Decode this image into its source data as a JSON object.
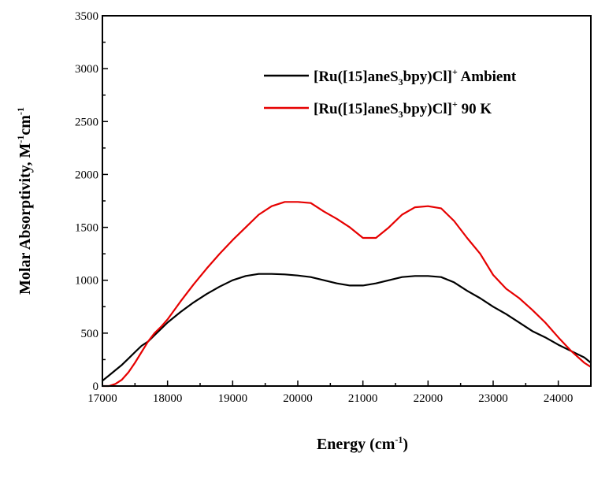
{
  "chart_data": {
    "type": "line",
    "title": "",
    "xlabel": {
      "main": "Energy (cm",
      "sup": "-1",
      "tail": ")"
    },
    "ylabel": {
      "main": "Molar Absorptivity, M",
      "sup1": "-1",
      "mid": "cm",
      "sup2": "-1"
    },
    "xlim": [
      17000,
      24500
    ],
    "ylim": [
      0,
      3500
    ],
    "xticks": [
      17000,
      18000,
      19000,
      20000,
      21000,
      22000,
      23000,
      24000
    ],
    "yticks": [
      0,
      500,
      1000,
      1500,
      2000,
      2500,
      3000,
      3500
    ],
    "grid": false,
    "legend_position": "top-right",
    "series": [
      {
        "name": "[Ru([15]aneS3bpy)Cl]+ Ambient",
        "legend": {
          "prefix": "[Ru([15]aneS",
          "sub": "3",
          "mid": "bpy)Cl]",
          "sup": "+",
          "suffix": " Ambient"
        },
        "color": "#000000",
        "x": [
          17000,
          17100,
          17200,
          17300,
          17400,
          17500,
          17600,
          17700,
          17800,
          17900,
          18000,
          18200,
          18400,
          18600,
          18800,
          19000,
          19200,
          19400,
          19600,
          19800,
          20000,
          20200,
          20400,
          20600,
          20800,
          21000,
          21200,
          21400,
          21600,
          21800,
          22000,
          22200,
          22400,
          22600,
          22800,
          23000,
          23200,
          23400,
          23600,
          23800,
          24000,
          24200,
          24400,
          24500
        ],
        "y": [
          50,
          100,
          150,
          200,
          260,
          320,
          380,
          420,
          480,
          540,
          600,
          700,
          790,
          870,
          940,
          1000,
          1040,
          1060,
          1060,
          1055,
          1045,
          1030,
          1000,
          970,
          950,
          950,
          970,
          1000,
          1030,
          1040,
          1040,
          1030,
          980,
          900,
          830,
          750,
          680,
          600,
          520,
          460,
          390,
          330,
          270,
          220
        ]
      },
      {
        "name": "[Ru([15]aneS3bpy)Cl]+ 90 K",
        "legend": {
          "prefix": "[Ru([15]aneS",
          "sub": "3",
          "mid": "bpy)Cl]",
          "sup": "+",
          "suffix": " 90 K"
        },
        "color": "#e60000",
        "x": [
          17000,
          17100,
          17200,
          17300,
          17400,
          17500,
          17600,
          17700,
          17800,
          17900,
          18000,
          18200,
          18400,
          18600,
          18800,
          19000,
          19200,
          19400,
          19600,
          19800,
          20000,
          20200,
          20400,
          20600,
          20800,
          21000,
          21200,
          21400,
          21600,
          21800,
          22000,
          22200,
          22400,
          22600,
          22800,
          23000,
          23200,
          23400,
          23600,
          23800,
          24000,
          24200,
          24400,
          24500
        ],
        "y": [
          0,
          0,
          20,
          60,
          130,
          220,
          320,
          420,
          500,
          560,
          630,
          800,
          960,
          1110,
          1250,
          1380,
          1500,
          1620,
          1700,
          1740,
          1740,
          1730,
          1650,
          1580,
          1500,
          1400,
          1400,
          1500,
          1620,
          1690,
          1700,
          1680,
          1560,
          1400,
          1250,
          1050,
          920,
          830,
          720,
          600,
          460,
          330,
          220,
          180
        ]
      }
    ]
  }
}
